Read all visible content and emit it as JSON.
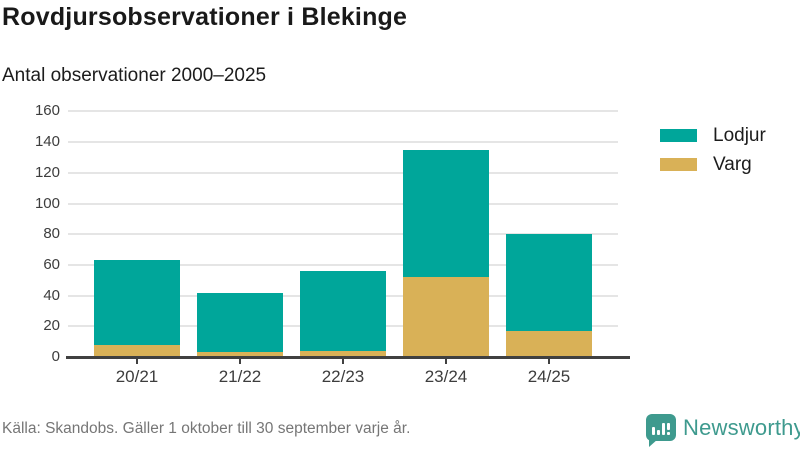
{
  "header": {
    "title": "Rovdjursobservationer i Blekinge",
    "subtitle": "Antal observationer 2000–2025"
  },
  "chart_data": {
    "type": "bar",
    "stacked": true,
    "title": "Rovdjursobservationer i Blekinge",
    "subtitle": "Antal observationer 2000–2025",
    "categories": [
      "20/21",
      "21/22",
      "22/23",
      "23/24",
      "24/25"
    ],
    "series": [
      {
        "name": "Lodjur",
        "color": "#00a69a",
        "values": [
          55,
          39,
          52,
          83,
          63
        ]
      },
      {
        "name": "Varg",
        "color": "#d9b157",
        "values": [
          8,
          3,
          4,
          52,
          17
        ]
      }
    ],
    "stack_order_bottom_to_top": [
      "Varg",
      "Lodjur"
    ],
    "totals": [
      63,
      42,
      56,
      135,
      80
    ],
    "xlabel": "",
    "ylabel": "",
    "ylim": [
      0,
      160
    ],
    "yticks": [
      0,
      20,
      40,
      60,
      80,
      100,
      120,
      140,
      160
    ],
    "grid": true,
    "legend_position": "right-top",
    "gridline_color": "#e5e5e5",
    "axis_color": "#404040"
  },
  "footer": {
    "source": "Källa: Skandobs. Gäller 1 oktober till 30 september varje år."
  },
  "branding": {
    "logo_text": "Newsworthy",
    "logo_icon": "bar-chart-speech-bubble-icon",
    "logo_color": "#3e9a8e"
  }
}
